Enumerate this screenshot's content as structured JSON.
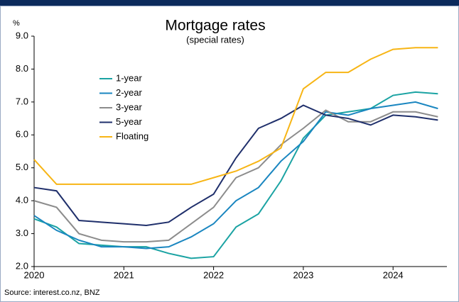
{
  "chart_data": {
    "type": "line",
    "title": "Mortgage rates",
    "subtitle": "(special rates)",
    "y_label": "%",
    "source": "Source: interest.co.nz, BNZ",
    "x": [
      2020,
      2020.25,
      2020.5,
      2020.75,
      2021,
      2021.25,
      2021.5,
      2021.75,
      2022,
      2022.25,
      2022.5,
      2022.75,
      2023,
      2023.25,
      2023.5,
      2023.75,
      2024,
      2024.25,
      2024.5
    ],
    "series": [
      {
        "name": "1-year",
        "color": "#1ba3a3",
        "values": [
          3.45,
          3.2,
          2.7,
          2.65,
          2.6,
          2.6,
          2.4,
          2.25,
          2.3,
          3.2,
          3.6,
          4.6,
          5.9,
          6.6,
          6.7,
          6.8,
          7.2,
          7.3,
          7.25
        ]
      },
      {
        "name": "2-year",
        "color": "#1a86c0",
        "values": [
          3.55,
          3.1,
          2.8,
          2.6,
          2.6,
          2.55,
          2.6,
          2.9,
          3.3,
          4.0,
          4.4,
          5.2,
          5.8,
          6.7,
          6.6,
          6.8,
          6.9,
          7.0,
          6.8
        ]
      },
      {
        "name": "3-year",
        "color": "#8c8c8c",
        "values": [
          4.0,
          3.8,
          3.0,
          2.8,
          2.75,
          2.75,
          2.8,
          3.3,
          3.8,
          4.7,
          5.0,
          5.7,
          6.2,
          6.75,
          6.4,
          6.4,
          6.7,
          6.7,
          6.55
        ]
      },
      {
        "name": "5-year",
        "color": "#1f2f6b",
        "values": [
          4.4,
          4.3,
          3.4,
          3.35,
          3.3,
          3.25,
          3.35,
          3.8,
          4.2,
          5.3,
          6.2,
          6.5,
          6.9,
          6.6,
          6.5,
          6.3,
          6.6,
          6.55,
          6.45
        ]
      },
      {
        "name": "Floating",
        "color": "#f7b515",
        "values": [
          5.25,
          4.5,
          4.5,
          4.5,
          4.5,
          4.5,
          4.5,
          4.5,
          4.7,
          4.9,
          5.2,
          5.6,
          7.4,
          7.9,
          7.9,
          8.3,
          8.6,
          8.65,
          8.65
        ]
      }
    ],
    "xlim": [
      2020,
      2024.6
    ],
    "xticks": [
      2020,
      2021,
      2022,
      2023,
      2024
    ],
    "ylim": [
      2,
      9
    ],
    "yticks": [
      {
        "value": 2,
        "label": "2.0"
      },
      {
        "value": 3,
        "label": "3.0"
      },
      {
        "value": 4,
        "label": "4.0"
      },
      {
        "value": 5,
        "label": "5.0"
      },
      {
        "value": 6,
        "label": "6.0"
      },
      {
        "value": 7,
        "label": "7.0"
      },
      {
        "value": 8,
        "label": "8.0"
      },
      {
        "value": 9,
        "label": "9.0"
      }
    ],
    "grid": false
  }
}
